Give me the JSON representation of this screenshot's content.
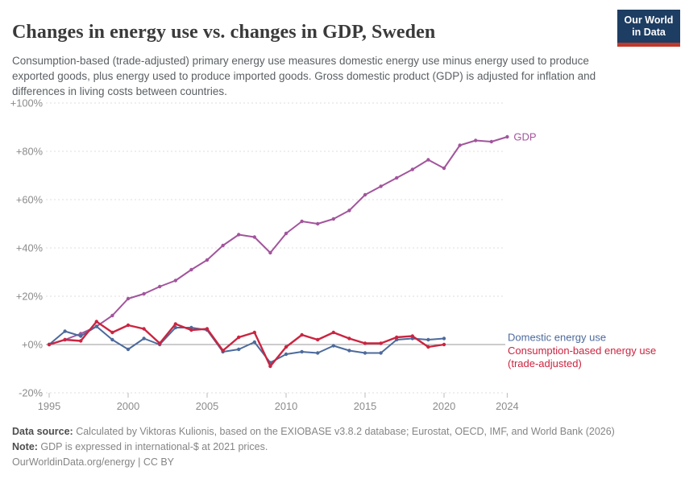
{
  "header": {
    "title": "Changes in energy use vs. changes in GDP, Sweden",
    "subtitle": "Consumption-based (trade-adjusted) primary energy use measures domestic energy use minus energy used to produce exported goods, plus energy used to produce imported goods. Gross domestic product (GDP) is adjusted for inflation and differences in living costs between countries.",
    "logo": {
      "line1": "Our World",
      "line2": "in Data",
      "bg_color": "#1d3d63",
      "bar_color": "#c0392b"
    }
  },
  "chart_data": {
    "type": "line",
    "title": "Changes in energy use vs. changes in GDP, Sweden",
    "country": "Sweden",
    "x_start_year": 1995,
    "x_ticks": [
      "1995",
      "2000",
      "2005",
      "2010",
      "2015",
      "2020",
      "2024"
    ],
    "y_ticks": [
      {
        "label": "+100%",
        "value": 100
      },
      {
        "label": "+80%",
        "value": 80
      },
      {
        "label": "+60%",
        "value": 60
      },
      {
        "label": "+40%",
        "value": 40
      },
      {
        "label": "+20%",
        "value": 20
      },
      {
        "label": "+0%",
        "value": 0
      },
      {
        "label": "-20%",
        "value": -20
      }
    ],
    "ylim": [
      -20,
      100
    ],
    "grid": "dashed horizontal gridlines, solid zero axis",
    "legend_position": "right of line ends",
    "series": [
      {
        "id": "gdp",
        "name": "GDP",
        "label_lines": [
          "GDP"
        ],
        "color": "#a2559c",
        "years_span": "1995-2024",
        "values": [
          0,
          2,
          4.5,
          7.5,
          12,
          19,
          21,
          24,
          26.5,
          31,
          35,
          41,
          45.5,
          44.5,
          38,
          46,
          51,
          50,
          52,
          55.5,
          62,
          65.5,
          69,
          72.5,
          76.5,
          73,
          82.5,
          84.5,
          84,
          86
        ]
      },
      {
        "id": "domestic",
        "name": "Domestic energy use",
        "label_lines": [
          "Domestic energy use"
        ],
        "color": "#4c6a9c",
        "years_span": "1995-2020",
        "values": [
          0,
          5.5,
          3.5,
          7.5,
          2,
          -2,
          2.5,
          0,
          7,
          7,
          6,
          -3,
          -2,
          1,
          -7.5,
          -4,
          -3,
          -3.5,
          -0.5,
          -2.5,
          -3.5,
          -3.5,
          2,
          2.5,
          2,
          2.5
        ]
      },
      {
        "id": "consumption",
        "name": "Consumption-based energy use (trade-adjusted)",
        "label_lines": [
          "Consumption-based energy use",
          "(trade-adjusted)"
        ],
        "color": "#cb2440",
        "years_span": "1995-2020",
        "values": [
          0,
          2,
          1.5,
          9.5,
          5,
          8,
          6.5,
          0.5,
          8.5,
          6,
          6.5,
          -2.5,
          3,
          5,
          -9,
          -1,
          4,
          2,
          5,
          2.5,
          0.5,
          0.5,
          3,
          3.5,
          -1,
          0
        ]
      }
    ]
  },
  "footer": {
    "data_source_label": "Data source:",
    "data_source_text": " Calculated by Viktoras Kulionis, based on the EXIOBASE v3.8.2 database; Eurostat, OECD, IMF, and World Bank (2026)",
    "note_label": "Note:",
    "note_text": " GDP is expressed in international-$ at 2021 prices.",
    "credit_link": "OurWorldinData.org/energy",
    "credit_license": " | CC BY"
  }
}
